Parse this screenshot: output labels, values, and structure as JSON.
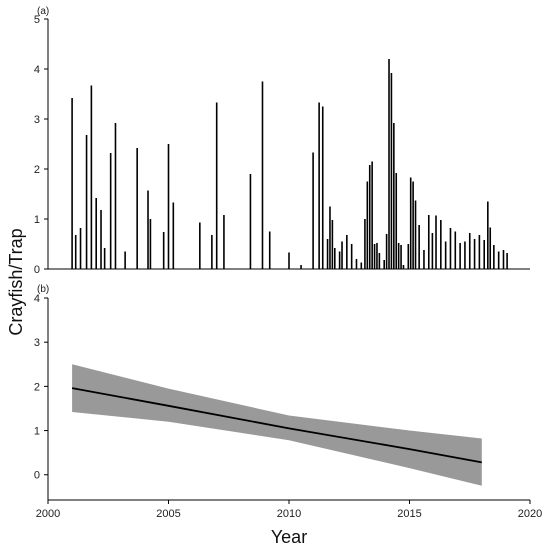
{
  "chart_data": [
    {
      "type": "bar",
      "panel_label": "(a)",
      "xlim": [
        2000,
        2020
      ],
      "ylim": [
        0,
        5
      ],
      "yticks": [
        0,
        1,
        2,
        3,
        4,
        5
      ],
      "bar_color": "#000000",
      "points": [
        [
          2001.0,
          3.42
        ],
        [
          2001.15,
          0.68
        ],
        [
          2001.35,
          0.82
        ],
        [
          2001.6,
          2.68
        ],
        [
          2001.8,
          3.67
        ],
        [
          2002.0,
          1.42
        ],
        [
          2002.2,
          1.18
        ],
        [
          2002.35,
          0.42
        ],
        [
          2002.6,
          2.32
        ],
        [
          2002.8,
          2.92
        ],
        [
          2003.2,
          0.35
        ],
        [
          2003.7,
          2.42
        ],
        [
          2004.15,
          1.57
        ],
        [
          2004.25,
          1.0
        ],
        [
          2004.8,
          0.74
        ],
        [
          2005.0,
          2.5
        ],
        [
          2005.2,
          1.33
        ],
        [
          2006.3,
          0.93
        ],
        [
          2006.8,
          0.68
        ],
        [
          2007.0,
          3.33
        ],
        [
          2007.3,
          1.08
        ],
        [
          2008.4,
          1.9
        ],
        [
          2008.9,
          3.75
        ],
        [
          2009.2,
          0.75
        ],
        [
          2010.0,
          0.33
        ],
        [
          2010.5,
          0.08
        ],
        [
          2011.0,
          2.33
        ],
        [
          2011.25,
          3.33
        ],
        [
          2011.4,
          3.25
        ],
        [
          2011.6,
          0.6
        ],
        [
          2011.7,
          1.25
        ],
        [
          2011.8,
          0.98
        ],
        [
          2011.9,
          0.42
        ],
        [
          2012.1,
          0.35
        ],
        [
          2012.2,
          0.55
        ],
        [
          2012.4,
          0.68
        ],
        [
          2012.6,
          0.5
        ],
        [
          2012.8,
          0.2
        ],
        [
          2013.0,
          0.13
        ],
        [
          2013.15,
          1.0
        ],
        [
          2013.25,
          1.75
        ],
        [
          2013.35,
          2.08
        ],
        [
          2013.45,
          2.15
        ],
        [
          2013.55,
          0.5
        ],
        [
          2013.65,
          0.52
        ],
        [
          2013.75,
          0.32
        ],
        [
          2013.95,
          0.18
        ],
        [
          2014.05,
          0.7
        ],
        [
          2014.15,
          4.2
        ],
        [
          2014.25,
          3.92
        ],
        [
          2014.35,
          2.92
        ],
        [
          2014.45,
          1.92
        ],
        [
          2014.55,
          0.52
        ],
        [
          2014.65,
          0.48
        ],
        [
          2014.75,
          0.08
        ],
        [
          2014.95,
          0.5
        ],
        [
          2015.05,
          1.83
        ],
        [
          2015.15,
          1.75
        ],
        [
          2015.25,
          1.37
        ],
        [
          2015.4,
          0.88
        ],
        [
          2015.6,
          0.38
        ],
        [
          2015.8,
          1.08
        ],
        [
          2015.95,
          0.72
        ],
        [
          2016.1,
          1.07
        ],
        [
          2016.3,
          0.98
        ],
        [
          2016.5,
          0.55
        ],
        [
          2016.7,
          0.82
        ],
        [
          2016.9,
          0.75
        ],
        [
          2017.1,
          0.52
        ],
        [
          2017.3,
          0.55
        ],
        [
          2017.5,
          0.72
        ],
        [
          2017.7,
          0.6
        ],
        [
          2017.9,
          0.68
        ],
        [
          2018.1,
          0.58
        ],
        [
          2018.25,
          1.35
        ],
        [
          2018.35,
          0.83
        ],
        [
          2018.5,
          0.48
        ],
        [
          2018.7,
          0.35
        ],
        [
          2018.9,
          0.38
        ],
        [
          2019.05,
          0.32
        ]
      ]
    },
    {
      "type": "line",
      "panel_label": "(b)",
      "xlim": [
        2000,
        2020
      ],
      "ylim": [
        -0.3,
        4
      ],
      "yticks": [
        0,
        1,
        2,
        3,
        4
      ],
      "xticks": [
        2000,
        2005,
        2010,
        2015,
        2020
      ],
      "xlabel": "Year",
      "ylabel": "Crayfish/Trap",
      "line_color": "#000000",
      "band_color": "#999999",
      "x": [
        2001,
        2005,
        2010,
        2015,
        2018
      ],
      "y": [
        1.96,
        1.56,
        1.05,
        0.58,
        0.28
      ],
      "lower": [
        1.42,
        1.2,
        0.78,
        0.15,
        -0.25
      ],
      "upper": [
        2.5,
        1.95,
        1.34,
        1.0,
        0.82
      ]
    }
  ]
}
